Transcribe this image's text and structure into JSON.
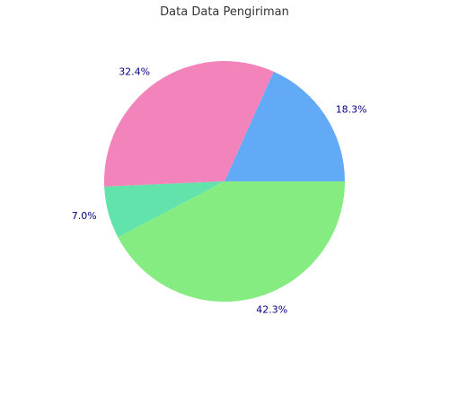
{
  "chart_data": {
    "type": "pie",
    "title": "Data Data Pengiriman",
    "slices": [
      {
        "value": 18.3,
        "label": "18.3%",
        "color": "#62aaf6"
      },
      {
        "value": 32.4,
        "label": "32.4%",
        "color": "#f283bb"
      },
      {
        "value": 7.0,
        "label": "7.0%",
        "color": "#62e3ab"
      },
      {
        "value": 42.3,
        "label": "42.3%",
        "color": "#84ec81"
      }
    ],
    "start_angle_deg": 0,
    "direction": "counterclockwise",
    "label_color": "#000080",
    "legend": "none"
  }
}
